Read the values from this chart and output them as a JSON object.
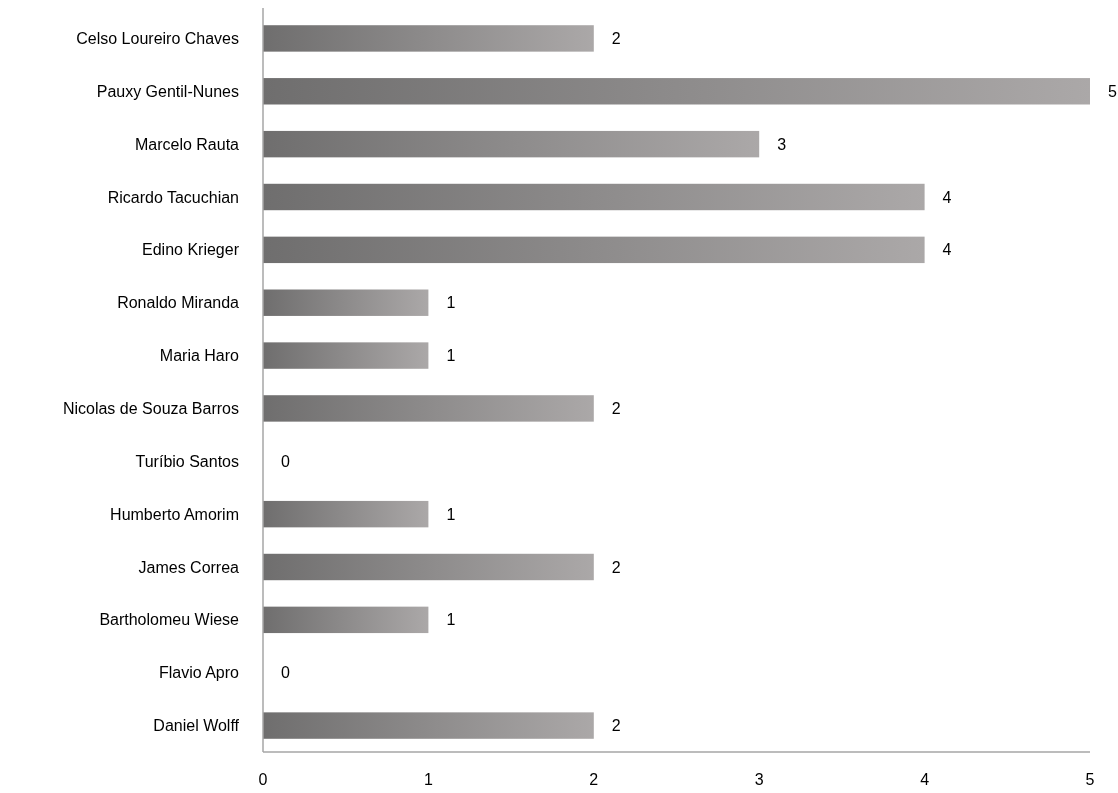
{
  "chart_data": {
    "type": "bar",
    "orientation": "horizontal",
    "categories": [
      "Celso Loureiro Chaves",
      "Pauxy Gentil-Nunes",
      "Marcelo Rauta",
      "Ricardo Tacuchian",
      "Edino Krieger",
      "Ronaldo Miranda",
      "Maria Haro",
      "Nicolas de Souza Barros",
      "Turíbio Santos",
      "Humberto Amorim",
      "James Correa",
      "Bartholomeu Wiese",
      "Flavio Apro",
      "Daniel Wolff"
    ],
    "values": [
      2,
      5,
      3,
      4,
      4,
      1,
      1,
      2,
      0,
      1,
      2,
      1,
      0,
      2
    ],
    "color": "#8a8888",
    "xlim": [
      0,
      5
    ],
    "xticks": [
      0,
      1,
      2,
      3,
      4,
      5
    ],
    "data_labels": true,
    "grid": false
  }
}
